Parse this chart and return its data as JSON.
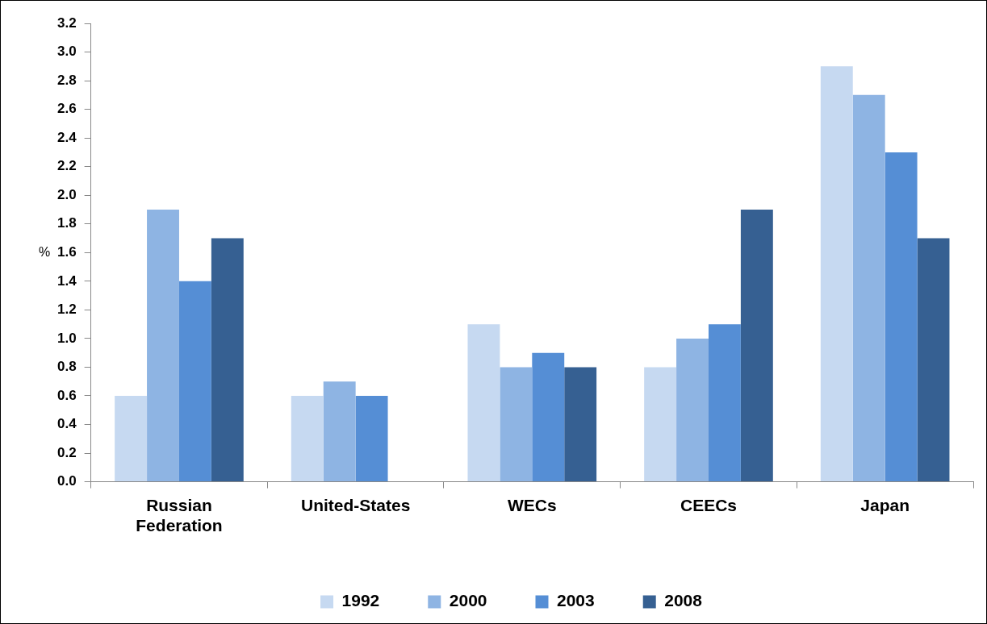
{
  "chart_data": {
    "type": "bar",
    "ylabel": "%",
    "categories": [
      "Russian Federation",
      "United-States",
      "WECs",
      "CEECs",
      "Japan"
    ],
    "series": [
      {
        "name": "1992",
        "color": "#c6d9f1",
        "values": [
          0.6,
          0.6,
          1.1,
          0.8,
          2.9
        ]
      },
      {
        "name": "2000",
        "color": "#8eb4e3",
        "values": [
          1.9,
          0.7,
          0.8,
          1.0,
          2.7
        ]
      },
      {
        "name": "2003",
        "color": "#558ed5",
        "values": [
          1.4,
          0.6,
          0.9,
          1.1,
          2.3
        ]
      },
      {
        "name": "2008",
        "color": "#366092",
        "values": [
          1.7,
          null,
          0.8,
          1.9,
          1.7
        ]
      }
    ],
    "ylim": [
      0,
      3.2
    ],
    "yticks": [
      {
        "value": 0,
        "label": "0.0"
      },
      {
        "value": 0.2,
        "label": "0.2"
      },
      {
        "value": 0.4,
        "label": "0.4"
      },
      {
        "value": 0.6,
        "label": "0.6"
      },
      {
        "value": 0.8,
        "label": "0.8"
      },
      {
        "value": 1,
        "label": "1.0"
      },
      {
        "value": 1.2,
        "label": "1.2"
      },
      {
        "value": 1.4,
        "label": "1.4"
      },
      {
        "value": 1.6,
        "label": "1.6"
      },
      {
        "value": 1.8,
        "label": "1.8"
      },
      {
        "value": 2,
        "label": "2.0"
      },
      {
        "value": 2.2,
        "label": "2.2"
      },
      {
        "value": 2.4,
        "label": "2.4"
      },
      {
        "value": 2.6,
        "label": "2.6"
      },
      {
        "value": 2.8,
        "label": "2.8"
      },
      {
        "value": 3,
        "label": "3.0"
      },
      {
        "value": 3.2,
        "label": "3.2"
      }
    ],
    "grid": false,
    "legend": "bottom"
  }
}
